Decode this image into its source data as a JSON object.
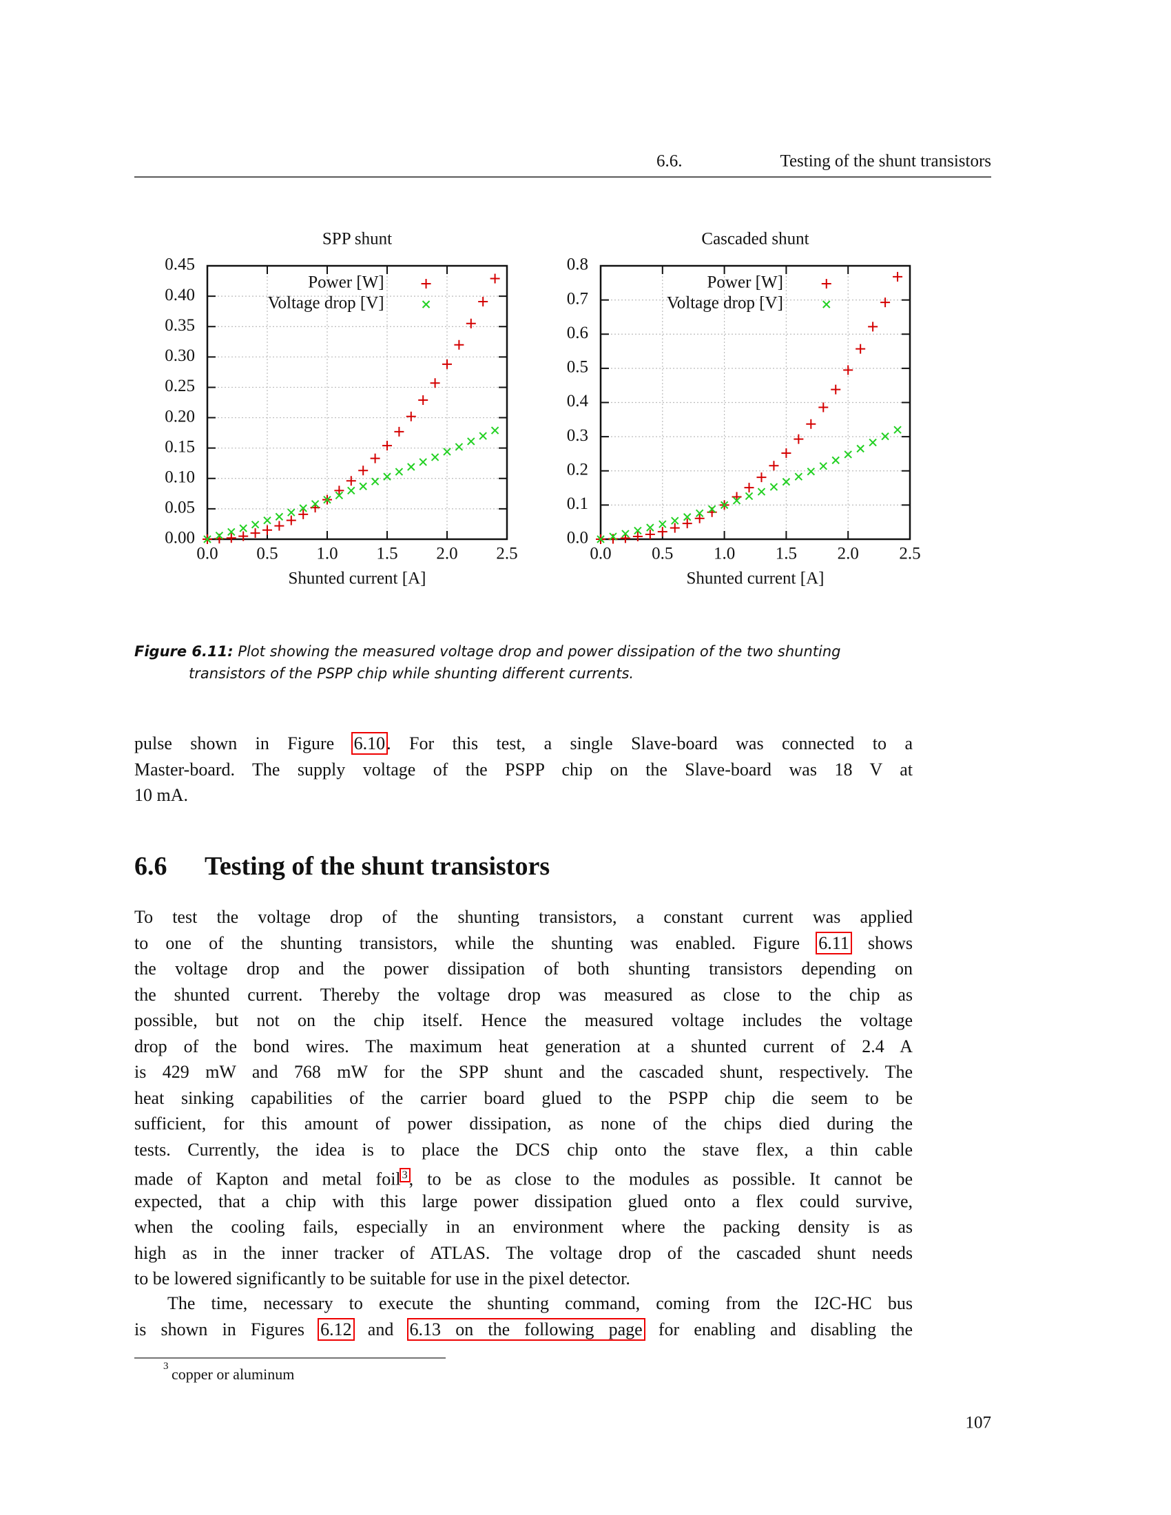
{
  "header": {
    "number": "6.6.",
    "title": "Testing of the shunt transistors"
  },
  "chart_data": [
    {
      "type": "scatter",
      "title": "SPP shunt",
      "x_label": "Shunted current [A]",
      "x": [
        0,
        0.1,
        0.2,
        0.3,
        0.4,
        0.5,
        0.6,
        0.7,
        0.8,
        0.9,
        1,
        1.1,
        1.2,
        1.3,
        1.4,
        1.5,
        1.6,
        1.7,
        1.8,
        1.9,
        2,
        2.1,
        2.2,
        2.3,
        2.4
      ],
      "series": [
        {
          "name": "Power [W]",
          "color": "#d40000",
          "marker": "plus",
          "values": [
            0,
            0.001,
            0.002,
            0.005,
            0.01,
            0.015,
            0.022,
            0.031,
            0.041,
            0.052,
            0.065,
            0.08,
            0.096,
            0.113,
            0.133,
            0.154,
            0.177,
            0.202,
            0.229,
            0.257,
            0.288,
            0.32,
            0.355,
            0.391,
            0.429
          ]
        },
        {
          "name": "Voltage drop [V]",
          "color": "#22d022",
          "marker": "cross",
          "values": [
            0,
            0.006,
            0.012,
            0.018,
            0.024,
            0.031,
            0.037,
            0.044,
            0.051,
            0.058,
            0.065,
            0.072,
            0.08,
            0.087,
            0.095,
            0.103,
            0.111,
            0.119,
            0.127,
            0.135,
            0.144,
            0.152,
            0.161,
            0.17,
            0.179
          ]
        }
      ],
      "xlim": [
        0,
        2.5
      ],
      "xticks": [
        {
          "value": 0,
          "label": "0.0"
        },
        0.5,
        {
          "value": 1,
          "label": "1.0"
        },
        1.5,
        {
          "value": 2,
          "label": "2.0"
        },
        2.5
      ],
      "ylim": [
        0,
        0.45
      ],
      "yticks": [
        {
          "value": 0,
          "label": "0.00"
        },
        {
          "value": 0.05,
          "label": "0.05"
        },
        {
          "value": 0.1,
          "label": "0.10"
        },
        {
          "value": 0.15,
          "label": "0.15"
        },
        {
          "value": 0.2,
          "label": "0.20"
        },
        {
          "value": 0.25,
          "label": "0.25"
        },
        {
          "value": 0.3,
          "label": "0.30"
        },
        {
          "value": 0.35,
          "label": "0.35"
        },
        {
          "value": 0.4,
          "label": "0.40"
        },
        {
          "value": 0.45,
          "label": "0.45"
        }
      ],
      "grid": true,
      "legend": "top"
    },
    {
      "type": "scatter",
      "title": "Cascaded shunt",
      "x_label": "Shunted current [A]",
      "x": [
        0,
        0.1,
        0.2,
        0.3,
        0.4,
        0.5,
        0.6,
        0.7,
        0.8,
        0.9,
        1,
        1.1,
        1.2,
        1.3,
        1.4,
        1.5,
        1.6,
        1.7,
        1.8,
        1.9,
        2,
        2.1,
        2.2,
        2.3,
        2.4
      ],
      "series": [
        {
          "name": "Power [W]",
          "color": "#d40000",
          "marker": "plus",
          "values": [
            0,
            0.001,
            0.003,
            0.008,
            0.014,
            0.022,
            0.033,
            0.046,
            0.061,
            0.079,
            0.1,
            0.124,
            0.151,
            0.181,
            0.215,
            0.252,
            0.293,
            0.337,
            0.386,
            0.438,
            0.495,
            0.557,
            0.622,
            0.693,
            0.768
          ]
        },
        {
          "name": "Voltage drop [V]",
          "color": "#22d022",
          "marker": "cross",
          "values": [
            0,
            0.008,
            0.016,
            0.025,
            0.034,
            0.044,
            0.054,
            0.065,
            0.076,
            0.088,
            0.1,
            0.113,
            0.126,
            0.139,
            0.153,
            0.168,
            0.183,
            0.198,
            0.214,
            0.231,
            0.248,
            0.265,
            0.283,
            0.301,
            0.32
          ]
        }
      ],
      "xlim": [
        0,
        2.5
      ],
      "xticks": [
        {
          "value": 0,
          "label": "0.0"
        },
        0.5,
        {
          "value": 1,
          "label": "1.0"
        },
        1.5,
        {
          "value": 2,
          "label": "2.0"
        },
        2.5
      ],
      "ylim": [
        0,
        0.8
      ],
      "yticks": [
        {
          "value": 0,
          "label": "0.0"
        },
        0.1,
        0.2,
        0.3,
        0.4,
        0.5,
        0.6,
        0.7,
        0.8
      ],
      "grid": true,
      "legend": "top"
    }
  ],
  "caption": {
    "label": "Figure 6.11:",
    "lines": [
      " Plot showing the measured voltage drop and power dissipation of the two shunting",
      "transistors of the PSPP chip while shunting different currents."
    ]
  },
  "paragraphs": [
    {
      "lines": [
        [
          "pulse shown in Figure ",
          {
            "link": "6.10"
          },
          ". For this test, a single Slave-board was connected to a"
        ],
        [
          "Master-board. The supply voltage of the PSPP chip on the Slave-board was 18 V at"
        ],
        [
          "10 mA."
        ]
      ]
    },
    {
      "lines": [
        [
          "To test the voltage drop of the shunting transistors, a constant current was applied"
        ],
        [
          "to one of the shunting transistors, while the shunting was enabled. Figure ",
          {
            "link": "6.11"
          },
          " shows"
        ],
        [
          "the voltage drop and the power dissipation of both shunting transistors depending on"
        ],
        [
          "the shunted current. Thereby the voltage drop was measured as close to the chip as"
        ],
        [
          "possible, but not on the chip itself. Hence the measured voltage includes the voltage"
        ],
        [
          "drop of the bond wires. The maximum heat generation at a shunted current of 2.4 A"
        ],
        [
          "is 429 mW and 768 mW for the SPP shunt and the cascaded shunt, respectively. The"
        ],
        [
          "heat sinking capabilities of the carrier board glued to the PSPP chip die seem to be"
        ],
        [
          "sufficient, for this amount of power dissipation, as none of the chips died during the"
        ],
        [
          "tests. Currently, the idea is to place the DCS chip onto the stave flex, a thin cable"
        ],
        [
          "made of Kapton and metal foil",
          {
            "sup": "3"
          },
          ", to be as close to the modules as possible. It cannot be"
        ],
        [
          "expected, that a chip with this large power dissipation glued onto a flex could survive,"
        ],
        [
          "when the cooling fails, especially in an environment where the packing density is as"
        ],
        [
          "high as in the inner tracker of ATLAS. The voltage drop of the cascaded shunt needs"
        ],
        [
          "to be lowered significantly to be suitable for use in the pixel detector."
        ]
      ]
    },
    {
      "lines": [
        [
          "The time, necessary to execute the shunting command, coming from the I2C-HC bus"
        ],
        [
          "is shown in Figures ",
          {
            "link": "6.12"
          },
          " and ",
          {
            "link": "6.13 on the following page"
          },
          " for enabling and disabling the"
        ]
      ]
    }
  ],
  "section": {
    "number": "6.6",
    "title": "Testing of the shunt transistors"
  },
  "footnote": {
    "mark": "3",
    "text": "copper or aluminum"
  },
  "page_number": "107"
}
